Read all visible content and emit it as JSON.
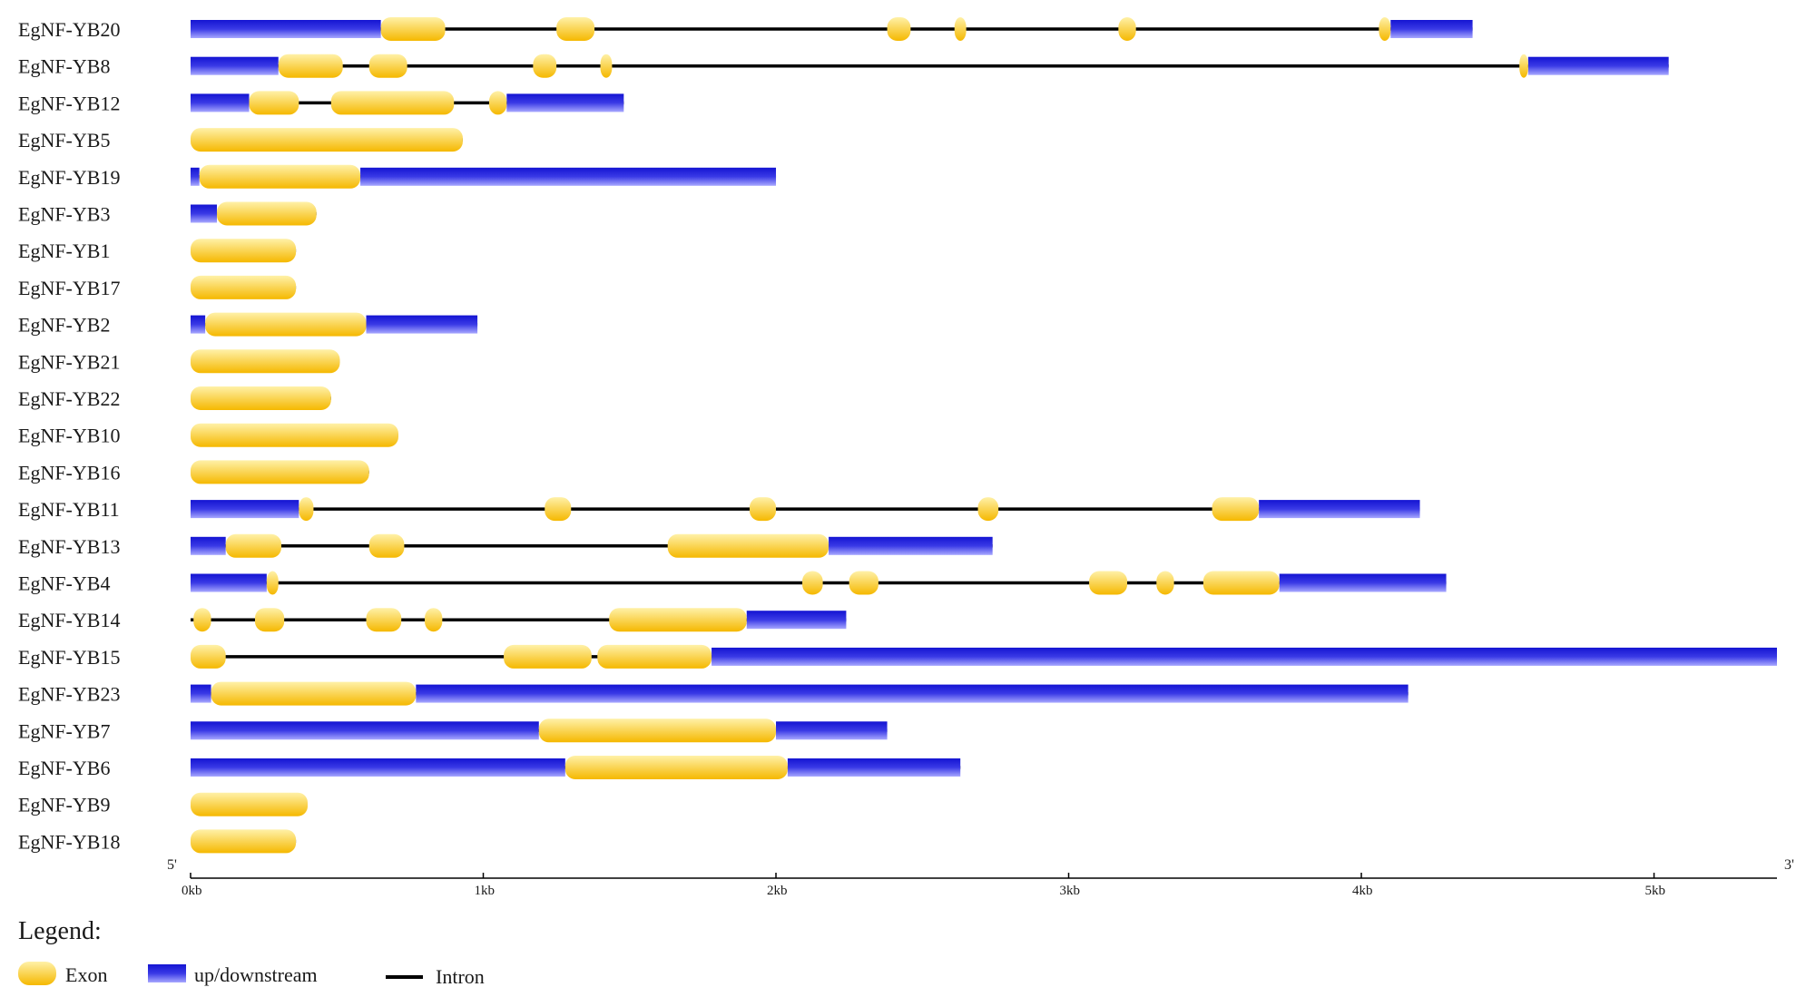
{
  "colors": {
    "exon_light": "#fff1a8",
    "exon_dark": "#f5b800",
    "utr_light": "#9a9aff",
    "utr_dark": "#1414d2",
    "intron": "#000000",
    "text": "#1a1a1a"
  },
  "axis": {
    "min_kb": 0,
    "max_kb": 5.42,
    "ticks": [
      0,
      1,
      2,
      3,
      4,
      5
    ],
    "tick_labels": [
      "0kb",
      "1kb",
      "2kb",
      "3kb",
      "4kb",
      "5kb"
    ],
    "five_prime_label": "5'",
    "three_prime_label": "3'"
  },
  "legend": {
    "title": "Legend:",
    "exon_label": "Exon",
    "utr_label": "up/downstream",
    "intron_label": "Intron"
  },
  "chart_data": {
    "type": "gene-structure",
    "unit": "kb",
    "genes": [
      {
        "name": "EgNF-YB20",
        "span": [
          0,
          4.38
        ],
        "exons": [
          [
            0.65,
            0.87
          ],
          [
            1.25,
            1.38
          ],
          [
            2.38,
            2.46
          ],
          [
            2.61,
            2.65
          ],
          [
            3.17,
            3.23
          ],
          [
            4.06,
            4.1
          ]
        ],
        "utr": [
          [
            0,
            0.65
          ],
          [
            4.1,
            4.38
          ]
        ]
      },
      {
        "name": "EgNF-YB8",
        "span": [
          0,
          5.05
        ],
        "exons": [
          [
            0.3,
            0.52
          ],
          [
            0.61,
            0.74
          ],
          [
            1.17,
            1.25
          ],
          [
            1.4,
            1.44
          ],
          [
            4.54,
            4.57
          ]
        ],
        "utr": [
          [
            0,
            0.3
          ],
          [
            4.57,
            5.05
          ]
        ]
      },
      {
        "name": "EgNF-YB12",
        "span": [
          0,
          1.48
        ],
        "exons": [
          [
            0.2,
            0.37
          ],
          [
            0.48,
            0.9
          ],
          [
            1.02,
            1.08
          ]
        ],
        "utr": [
          [
            0,
            0.2
          ],
          [
            1.08,
            1.48
          ]
        ]
      },
      {
        "name": "EgNF-YB5",
        "span": [
          0,
          0.93
        ],
        "exons": [
          [
            0,
            0.93
          ]
        ],
        "utr": []
      },
      {
        "name": "EgNF-YB19",
        "span": [
          0,
          2.0
        ],
        "exons": [
          [
            0.03,
            0.58
          ]
        ],
        "utr": [
          [
            0,
            0.03
          ],
          [
            0.58,
            2.0
          ]
        ]
      },
      {
        "name": "EgNF-YB3",
        "span": [
          0,
          0.43
        ],
        "exons": [
          [
            0.09,
            0.43
          ]
        ],
        "utr": [
          [
            0,
            0.09
          ]
        ]
      },
      {
        "name": "EgNF-YB1",
        "span": [
          0,
          0.36
        ],
        "exons": [
          [
            0,
            0.36
          ]
        ],
        "utr": []
      },
      {
        "name": "EgNF-YB17",
        "span": [
          0,
          0.36
        ],
        "exons": [
          [
            0,
            0.36
          ]
        ],
        "utr": []
      },
      {
        "name": "EgNF-YB2",
        "span": [
          0,
          0.98
        ],
        "exons": [
          [
            0.05,
            0.6
          ]
        ],
        "utr": [
          [
            0,
            0.05
          ],
          [
            0.6,
            0.98
          ]
        ]
      },
      {
        "name": "EgNF-YB21",
        "span": [
          0,
          0.51
        ],
        "exons": [
          [
            0,
            0.51
          ]
        ],
        "utr": []
      },
      {
        "name": "EgNF-YB22",
        "span": [
          0,
          0.48
        ],
        "exons": [
          [
            0,
            0.48
          ]
        ],
        "utr": []
      },
      {
        "name": "EgNF-YB10",
        "span": [
          0,
          0.71
        ],
        "exons": [
          [
            0,
            0.71
          ]
        ],
        "utr": []
      },
      {
        "name": "EgNF-YB16",
        "span": [
          0,
          0.61
        ],
        "exons": [
          [
            0,
            0.61
          ]
        ],
        "utr": []
      },
      {
        "name": "EgNF-YB11",
        "span": [
          0,
          4.2
        ],
        "exons": [
          [
            0.37,
            0.42
          ],
          [
            1.21,
            1.3
          ],
          [
            1.91,
            2.0
          ],
          [
            2.69,
            2.76
          ],
          [
            3.49,
            3.65
          ]
        ],
        "utr": [
          [
            0,
            0.37
          ],
          [
            3.65,
            4.2
          ]
        ]
      },
      {
        "name": "EgNF-YB13",
        "span": [
          0,
          2.74
        ],
        "exons": [
          [
            0.12,
            0.31
          ],
          [
            0.61,
            0.73
          ],
          [
            1.63,
            2.18
          ]
        ],
        "utr": [
          [
            0,
            0.12
          ],
          [
            2.18,
            2.74
          ]
        ]
      },
      {
        "name": "EgNF-YB4",
        "span": [
          0,
          4.29
        ],
        "exons": [
          [
            0.26,
            0.3
          ],
          [
            2.09,
            2.16
          ],
          [
            2.25,
            2.35
          ],
          [
            3.07,
            3.2
          ],
          [
            3.3,
            3.36
          ],
          [
            3.46,
            3.72
          ]
        ],
        "utr": [
          [
            0,
            0.26
          ],
          [
            3.72,
            4.29
          ]
        ]
      },
      {
        "name": "EgNF-YB14",
        "span": [
          0,
          2.24
        ],
        "exons": [
          [
            0.01,
            0.07
          ],
          [
            0.22,
            0.32
          ],
          [
            0.6,
            0.72
          ],
          [
            0.8,
            0.86
          ],
          [
            1.43,
            1.9
          ]
        ],
        "utr": [
          [
            1.9,
            2.24
          ]
        ]
      },
      {
        "name": "EgNF-YB15",
        "span": [
          0,
          5.42
        ],
        "exons": [
          [
            0,
            0.12
          ],
          [
            1.07,
            1.37
          ],
          [
            1.39,
            1.78
          ]
        ],
        "utr": [
          [
            1.78,
            5.42
          ]
        ]
      },
      {
        "name": "EgNF-YB23",
        "span": [
          0,
          4.16
        ],
        "exons": [
          [
            0.07,
            0.77
          ]
        ],
        "utr": [
          [
            0,
            0.07
          ],
          [
            0.77,
            4.16
          ]
        ]
      },
      {
        "name": "EgNF-YB7",
        "span": [
          0,
          2.38
        ],
        "exons": [
          [
            1.19,
            2.0
          ]
        ],
        "utr": [
          [
            0,
            1.19
          ],
          [
            2.0,
            2.38
          ]
        ]
      },
      {
        "name": "EgNF-YB6",
        "span": [
          0,
          2.63
        ],
        "exons": [
          [
            1.28,
            2.04
          ]
        ],
        "utr": [
          [
            0,
            1.28
          ],
          [
            2.04,
            2.63
          ]
        ]
      },
      {
        "name": "EgNF-YB9",
        "span": [
          0,
          0.4
        ],
        "exons": [
          [
            0,
            0.4
          ]
        ],
        "utr": []
      },
      {
        "name": "EgNF-YB18",
        "span": [
          0,
          0.36
        ],
        "exons": [
          [
            0,
            0.36
          ]
        ],
        "utr": []
      }
    ]
  }
}
